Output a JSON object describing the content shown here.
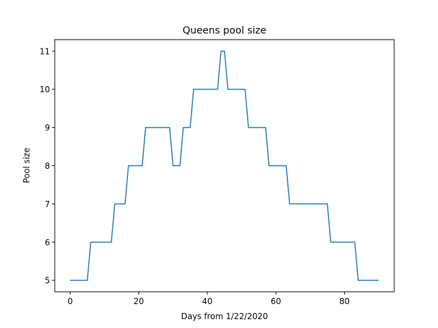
{
  "chart_data": {
    "type": "line",
    "title": "Queens pool size",
    "xlabel": "Days from 1/22/2020",
    "ylabel": "Pool size",
    "xlim": [
      -4.5,
      94.5
    ],
    "ylim": [
      4.7,
      11.3
    ],
    "xticks": [
      0,
      20,
      40,
      60,
      80
    ],
    "yticks": [
      5,
      6,
      7,
      8,
      9,
      10,
      11
    ],
    "grid": false,
    "color": "#1f77b4",
    "series": [
      {
        "x": [
          0,
          5,
          6,
          12,
          13,
          16,
          17,
          21,
          22,
          29,
          30,
          32,
          33,
          35,
          36,
          43,
          44,
          45,
          46,
          51,
          52,
          57,
          58,
          63,
          64,
          75,
          76,
          83,
          84,
          90
        ],
        "y": [
          5,
          5,
          6,
          6,
          7,
          7,
          8,
          8,
          9,
          9,
          8,
          8,
          9,
          9,
          10,
          10,
          11,
          11,
          10,
          10,
          9,
          9,
          8,
          8,
          7,
          7,
          6,
          6,
          5,
          5
        ]
      }
    ]
  }
}
